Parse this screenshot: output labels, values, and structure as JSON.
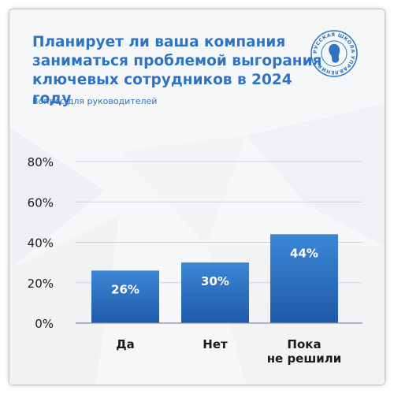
{
  "title": "Планирует ли ваша компания\nзаниматься проблемой выгорания\nключевых сотрудников в 2024 году",
  "subtitle": "Вопрос для руководителей",
  "logo": {
    "text": "РУССКАЯ ШКОЛА УПРАВЛЕНИЯ",
    "icon": "russian-school-of-management-logo"
  },
  "colors": {
    "accent": "#2f73c2",
    "bar_top": "#3c86d6",
    "bar_bottom": "#1f5aa8",
    "text_dark": "#1a1a1a"
  },
  "chart_data": {
    "type": "bar",
    "categories": [
      "Да",
      "Нет",
      "Пока\nне решили"
    ],
    "values": [
      26,
      30,
      44
    ],
    "data_labels": [
      "26%",
      "30%",
      "44%"
    ],
    "y_ticks": [
      "0%",
      "20%",
      "40%",
      "60%",
      "80%"
    ],
    "y_tick_values": [
      0,
      20,
      40,
      60,
      80
    ],
    "ylim": [
      0,
      80
    ],
    "grid": true,
    "legend": "none"
  }
}
